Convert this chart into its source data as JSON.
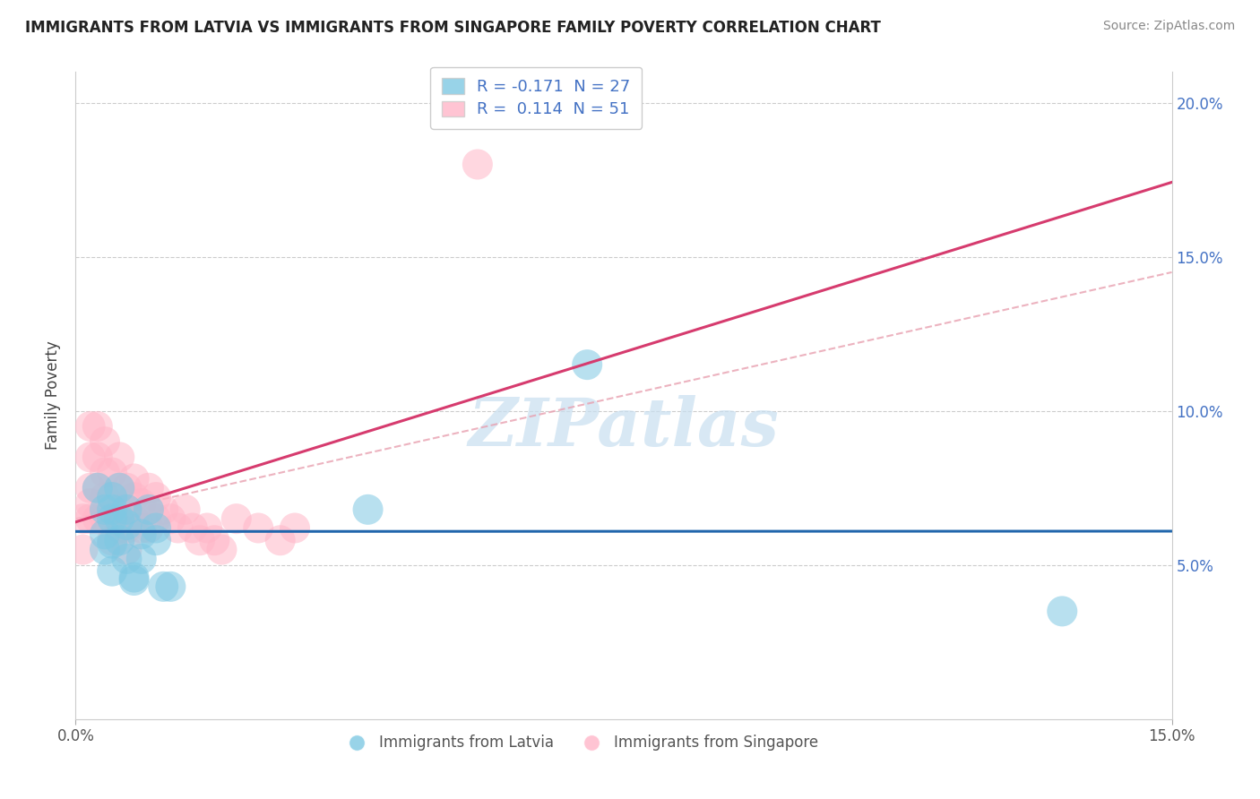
{
  "title": "IMMIGRANTS FROM LATVIA VS IMMIGRANTS FROM SINGAPORE FAMILY POVERTY CORRELATION CHART",
  "source": "Source: ZipAtlas.com",
  "ylabel": "Family Poverty",
  "xlim": [
    0.0,
    0.15
  ],
  "ylim": [
    0.0,
    0.21
  ],
  "legend_latvia_R": "-0.171",
  "legend_latvia_N": "27",
  "legend_singapore_R": "0.114",
  "legend_singapore_N": "51",
  "latvia_color": "#7ec8e3",
  "singapore_color": "#ffb6c8",
  "latvia_line_color": "#2166ac",
  "singapore_line_color": "#d63b6e",
  "background_color": "#ffffff",
  "grid_color": "#cccccc",
  "right_tick_color": "#4472c4",
  "watermark_color": "#c8dff0",
  "latvia_x": [
    0.003,
    0.004,
    0.004,
    0.004,
    0.005,
    0.005,
    0.005,
    0.005,
    0.005,
    0.006,
    0.006,
    0.006,
    0.007,
    0.007,
    0.007,
    0.008,
    0.008,
    0.009,
    0.009,
    0.01,
    0.011,
    0.011,
    0.012,
    0.013,
    0.04,
    0.07,
    0.135
  ],
  "latvia_y": [
    0.075,
    0.068,
    0.06,
    0.055,
    0.072,
    0.068,
    0.065,
    0.057,
    0.048,
    0.075,
    0.065,
    0.058,
    0.068,
    0.063,
    0.052,
    0.045,
    0.046,
    0.06,
    0.052,
    0.068,
    0.062,
    0.058,
    0.043,
    0.043,
    0.068,
    0.115,
    0.035
  ],
  "singapore_x": [
    0.001,
    0.001,
    0.002,
    0.002,
    0.002,
    0.002,
    0.002,
    0.003,
    0.003,
    0.003,
    0.003,
    0.004,
    0.004,
    0.004,
    0.004,
    0.005,
    0.005,
    0.005,
    0.005,
    0.006,
    0.006,
    0.006,
    0.006,
    0.007,
    0.007,
    0.007,
    0.007,
    0.008,
    0.008,
    0.008,
    0.009,
    0.009,
    0.01,
    0.01,
    0.01,
    0.011,
    0.011,
    0.012,
    0.013,
    0.014,
    0.015,
    0.016,
    0.017,
    0.018,
    0.019,
    0.02,
    0.022,
    0.025,
    0.028,
    0.03,
    0.055
  ],
  "singapore_y": [
    0.065,
    0.055,
    0.095,
    0.085,
    0.075,
    0.07,
    0.065,
    0.095,
    0.085,
    0.075,
    0.065,
    0.09,
    0.08,
    0.072,
    0.065,
    0.08,
    0.072,
    0.065,
    0.058,
    0.085,
    0.075,
    0.068,
    0.062,
    0.075,
    0.068,
    0.062,
    0.055,
    0.078,
    0.072,
    0.065,
    0.07,
    0.062,
    0.075,
    0.068,
    0.062,
    0.072,
    0.065,
    0.068,
    0.065,
    0.062,
    0.068,
    0.062,
    0.058,
    0.062,
    0.058,
    0.055,
    0.065,
    0.062,
    0.058,
    0.062,
    0.18
  ],
  "dashed_line_x": [
    0.0,
    0.15
  ],
  "dashed_line_y": [
    0.065,
    0.145
  ]
}
